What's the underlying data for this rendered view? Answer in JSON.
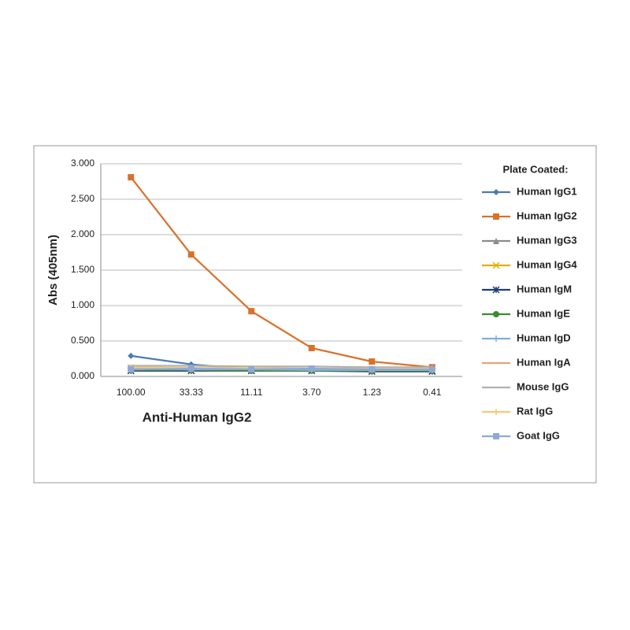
{
  "chart_data": {
    "type": "line",
    "y_label": "Abs (405nm)",
    "x_label": "Anti-Human IgG2",
    "legend_title": "Plate Coated:",
    "legend": "right",
    "grid": true,
    "categories": [
      "100.00",
      "33.33",
      "11.11",
      "3.70",
      "1.23",
      "0.41"
    ],
    "ylim": [
      0,
      3
    ],
    "yticks": [
      {
        "value": 0,
        "label": "0.000"
      },
      {
        "value": 0.5,
        "label": "0.500"
      },
      {
        "value": 1,
        "label": "1.000"
      },
      {
        "value": 1.5,
        "label": "1.500"
      },
      {
        "value": 2,
        "label": "2.000"
      },
      {
        "value": 2.5,
        "label": "2.500"
      },
      {
        "value": 3,
        "label": "3.000"
      }
    ],
    "series": [
      {
        "name": "Human IgG1",
        "color": "#4a7ab5",
        "marker": "diamond",
        "values": [
          0.29,
          0.17,
          0.1,
          0.1,
          0.09,
          0.09
        ]
      },
      {
        "name": "Human IgG2",
        "color": "#d9712b",
        "marker": "square",
        "values": [
          2.81,
          1.72,
          0.92,
          0.4,
          0.21,
          0.13
        ]
      },
      {
        "name": "Human IgG3",
        "color": "#8c8c8c",
        "marker": "triangle",
        "values": [
          0.1,
          0.09,
          0.09,
          0.09,
          0.08,
          0.08
        ]
      },
      {
        "name": "Human IgG4",
        "color": "#e0b000",
        "marker": "x",
        "values": [
          0.12,
          0.11,
          0.1,
          0.1,
          0.09,
          0.09
        ]
      },
      {
        "name": "Human IgM",
        "color": "#1f3d7a",
        "marker": "star",
        "values": [
          0.08,
          0.08,
          0.08,
          0.08,
          0.07,
          0.07
        ]
      },
      {
        "name": "Human IgE",
        "color": "#3c8a2e",
        "marker": "circle",
        "values": [
          0.09,
          0.09,
          0.08,
          0.08,
          0.08,
          0.08
        ]
      },
      {
        "name": "Human IgD",
        "color": "#7fb0dc",
        "marker": "plus",
        "values": [
          0.11,
          0.1,
          0.1,
          0.09,
          0.09,
          0.09
        ]
      },
      {
        "name": "Human IgA",
        "color": "#e8a080",
        "marker": "dash",
        "values": [
          0.12,
          0.12,
          0.11,
          0.11,
          0.1,
          0.1
        ]
      },
      {
        "name": "Mouse IgG",
        "color": "#b0b0b0",
        "marker": "dash",
        "values": [
          0.15,
          0.15,
          0.14,
          0.14,
          0.13,
          0.13
        ]
      },
      {
        "name": "Rat IgG",
        "color": "#f5c97a",
        "marker": "plus",
        "values": [
          0.13,
          0.12,
          0.12,
          0.11,
          0.11,
          0.11
        ]
      },
      {
        "name": "Goat IgG",
        "color": "#8fa8d8",
        "marker": "square",
        "values": [
          0.1,
          0.11,
          0.1,
          0.11,
          0.1,
          0.1
        ]
      }
    ]
  }
}
